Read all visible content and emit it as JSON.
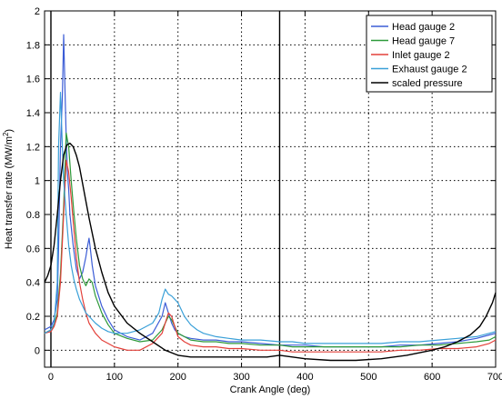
{
  "chart_data": {
    "type": "line",
    "xlabel": "Crank Angle (deg)",
    "ylabel": "Heat transfer rate (MW/m",
    "ylabel_sup": "2",
    "ylabel_close": ")",
    "xlim": [
      -10,
      700
    ],
    "ylim": [
      -0.1,
      2
    ],
    "x_ticks": [
      "0",
      "100",
      "200",
      "300",
      "400",
      "500",
      "600",
      "700"
    ],
    "y_ticks": [
      "0",
      "0.2",
      "0.4",
      "0.6",
      "0.8",
      "1",
      "1.2",
      "1.4",
      "1.6",
      "1.8",
      "2"
    ],
    "grid": true,
    "legend_position": "top-right",
    "vertical_lines": [
      0,
      360
    ],
    "series": [
      {
        "name": "Head gauge 2",
        "color": "#3c5dd6",
        "x": [
          -10,
          0,
          5,
          10,
          12,
          15,
          18,
          20,
          22,
          24,
          26,
          28,
          30,
          35,
          40,
          45,
          50,
          55,
          58,
          60,
          62,
          65,
          70,
          80,
          90,
          100,
          120,
          140,
          160,
          175,
          180,
          185,
          190,
          195,
          200,
          210,
          220,
          240,
          260,
          280,
          300,
          330,
          360,
          380,
          400,
          430,
          460,
          490,
          520,
          550,
          580,
          610,
          640,
          670,
          690,
          700
        ],
        "y": [
          0.12,
          0.14,
          0.18,
          0.3,
          0.6,
          1.2,
          1.5,
          1.86,
          1.55,
          1.25,
          1.05,
          0.95,
          0.8,
          0.62,
          0.48,
          0.42,
          0.46,
          0.55,
          0.62,
          0.66,
          0.6,
          0.5,
          0.38,
          0.26,
          0.18,
          0.12,
          0.08,
          0.06,
          0.1,
          0.2,
          0.28,
          0.22,
          0.16,
          0.12,
          0.1,
          0.08,
          0.07,
          0.06,
          0.06,
          0.05,
          0.05,
          0.04,
          0.03,
          0.03,
          0.03,
          0.02,
          0.02,
          0.02,
          0.02,
          0.03,
          0.03,
          0.04,
          0.05,
          0.07,
          0.09,
          0.1
        ]
      },
      {
        "name": "Head gauge 7",
        "color": "#2e9a3a",
        "x": [
          -10,
          0,
          5,
          10,
          15,
          20,
          24,
          28,
          32,
          36,
          40,
          45,
          50,
          55,
          60,
          65,
          70,
          80,
          90,
          100,
          120,
          140,
          160,
          175,
          185,
          190,
          195,
          200,
          210,
          220,
          240,
          260,
          280,
          300,
          330,
          360,
          380,
          400,
          430,
          460,
          490,
          520,
          550,
          580,
          610,
          640,
          670,
          690,
          700
        ],
        "y": [
          0.1,
          0.12,
          0.15,
          0.22,
          0.45,
          0.85,
          1.28,
          1.2,
          1.0,
          0.82,
          0.66,
          0.5,
          0.42,
          0.38,
          0.42,
          0.4,
          0.32,
          0.22,
          0.15,
          0.1,
          0.07,
          0.05,
          0.06,
          0.12,
          0.2,
          0.18,
          0.14,
          0.1,
          0.08,
          0.06,
          0.05,
          0.05,
          0.04,
          0.04,
          0.03,
          0.03,
          0.02,
          0.02,
          0.02,
          0.02,
          0.02,
          0.02,
          0.02,
          0.03,
          0.03,
          0.04,
          0.05,
          0.06,
          0.08
        ]
      },
      {
        "name": "Inlet gauge 2",
        "color": "#e3403a",
        "x": [
          -10,
          0,
          5,
          10,
          15,
          20,
          24,
          28,
          32,
          36,
          40,
          45,
          50,
          55,
          60,
          70,
          80,
          90,
          100,
          110,
          120,
          140,
          160,
          175,
          185,
          190,
          195,
          200,
          210,
          220,
          240,
          260,
          280,
          300,
          330,
          360,
          380,
          400,
          430,
          460,
          490,
          520,
          550,
          580,
          610,
          640,
          670,
          690,
          700
        ],
        "y": [
          0.1,
          0.11,
          0.14,
          0.2,
          0.4,
          0.8,
          1.12,
          1.05,
          0.9,
          0.72,
          0.55,
          0.4,
          0.3,
          0.22,
          0.16,
          0.1,
          0.06,
          0.04,
          0.02,
          0.01,
          0.0,
          0.0,
          0.04,
          0.1,
          0.22,
          0.2,
          0.14,
          0.08,
          0.05,
          0.03,
          0.02,
          0.02,
          0.01,
          0.01,
          0.0,
          0.0,
          -0.01,
          -0.01,
          -0.01,
          -0.01,
          -0.01,
          -0.01,
          0.0,
          0.0,
          0.01,
          0.01,
          0.02,
          0.04,
          0.06
        ]
      },
      {
        "name": "Exhaust gauge 2",
        "color": "#3aa0d8",
        "x": [
          -10,
          0,
          5,
          10,
          12,
          15,
          18,
          20,
          24,
          28,
          32,
          36,
          40,
          45,
          50,
          55,
          60,
          70,
          80,
          90,
          100,
          120,
          140,
          160,
          170,
          175,
          180,
          185,
          190,
          195,
          200,
          205,
          210,
          220,
          230,
          240,
          260,
          280,
          300,
          330,
          360,
          380,
          400,
          430,
          460,
          490,
          520,
          550,
          580,
          610,
          640,
          670,
          690,
          700
        ],
        "y": [
          0.1,
          0.12,
          0.16,
          0.4,
          1.2,
          1.52,
          1.2,
          1.0,
          0.8,
          0.62,
          0.5,
          0.42,
          0.36,
          0.3,
          0.26,
          0.22,
          0.2,
          0.16,
          0.13,
          0.11,
          0.1,
          0.1,
          0.12,
          0.16,
          0.22,
          0.3,
          0.36,
          0.33,
          0.32,
          0.3,
          0.28,
          0.24,
          0.2,
          0.15,
          0.12,
          0.1,
          0.08,
          0.07,
          0.06,
          0.06,
          0.05,
          0.05,
          0.04,
          0.04,
          0.04,
          0.04,
          0.04,
          0.05,
          0.05,
          0.06,
          0.07,
          0.08,
          0.1,
          0.11
        ]
      },
      {
        "name": "scaled pressure",
        "color": "#000000",
        "x": [
          -10,
          -5,
          0,
          5,
          10,
          15,
          20,
          25,
          30,
          35,
          40,
          45,
          50,
          55,
          60,
          70,
          80,
          90,
          100,
          120,
          140,
          160,
          180,
          200,
          220,
          260,
          300,
          340,
          360,
          380,
          400,
          440,
          480,
          520,
          560,
          600,
          620,
          640,
          660,
          675,
          685,
          695,
          700
        ],
        "y": [
          0.4,
          0.44,
          0.5,
          0.62,
          0.8,
          1.0,
          1.15,
          1.21,
          1.22,
          1.2,
          1.15,
          1.08,
          0.98,
          0.88,
          0.78,
          0.6,
          0.46,
          0.34,
          0.26,
          0.16,
          0.1,
          0.05,
          0.0,
          -0.03,
          -0.04,
          -0.04,
          -0.04,
          -0.04,
          -0.03,
          -0.04,
          -0.05,
          -0.06,
          -0.06,
          -0.05,
          -0.03,
          -0.0,
          0.02,
          0.05,
          0.09,
          0.14,
          0.2,
          0.28,
          0.34
        ]
      }
    ]
  }
}
